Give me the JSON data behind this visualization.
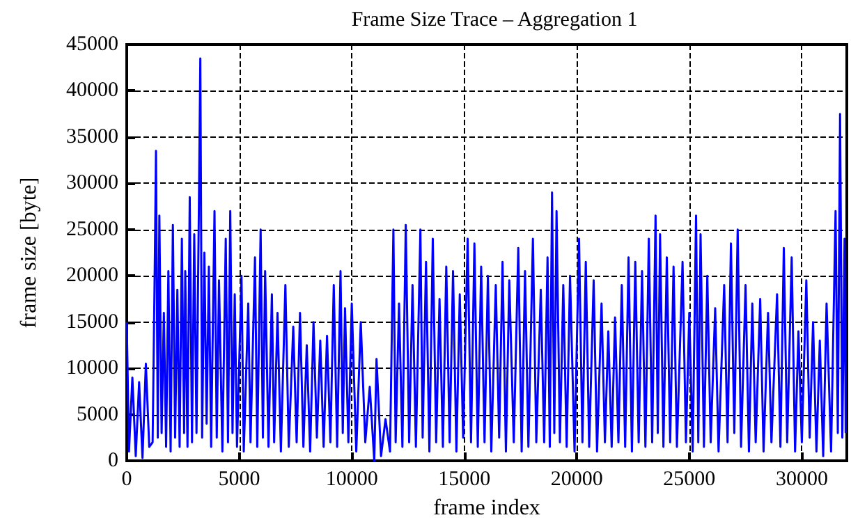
{
  "chart_data": {
    "type": "line",
    "title": "Frame Size Trace – Aggregation 1",
    "xlabel": "frame index",
    "ylabel": "frame size [byte]",
    "x": [
      0,
      100,
      250,
      400,
      550,
      700,
      850,
      1000,
      1150,
      1250,
      1300,
      1380,
      1450,
      1550,
      1650,
      1750,
      1850,
      1950,
      2050,
      2150,
      2250,
      2350,
      2450,
      2550,
      2600,
      2700,
      2800,
      2900,
      3000,
      3100,
      3200,
      3270,
      3350,
      3450,
      3550,
      3650,
      3750,
      3900,
      4000,
      4100,
      4250,
      4400,
      4500,
      4600,
      4700,
      4800,
      4900,
      5100,
      5200,
      5400,
      5500,
      5700,
      5800,
      5950,
      6050,
      6150,
      6300,
      6450,
      6550,
      6700,
      6850,
      7050,
      7200,
      7400,
      7550,
      7700,
      7850,
      8000,
      8150,
      8300,
      8450,
      8600,
      8750,
      8900,
      9050,
      9200,
      9350,
      9500,
      9600,
      9700,
      9850,
      10000,
      10200,
      10400,
      10600,
      10800,
      11000,
      11100,
      11300,
      11500,
      11700,
      11850,
      11950,
      12100,
      12250,
      12400,
      12550,
      12700,
      12850,
      13050,
      13150,
      13300,
      13450,
      13600,
      13750,
      13900,
      14050,
      14200,
      14350,
      14500,
      14650,
      14800,
      14950,
      15150,
      15300,
      15450,
      15600,
      15750,
      15900,
      16050,
      16200,
      16400,
      16550,
      16700,
      16850,
      17000,
      17200,
      17400,
      17550,
      17700,
      17850,
      18050,
      18200,
      18400,
      18550,
      18700,
      18800,
      18900,
      19000,
      19100,
      19250,
      19400,
      19550,
      19700,
      19900,
      20100,
      20250,
      20400,
      20550,
      20750,
      20900,
      21100,
      21250,
      21400,
      21550,
      21700,
      21850,
      22000,
      22150,
      22300,
      22450,
      22600,
      22750,
      22900,
      23050,
      23200,
      23350,
      23500,
      23600,
      23700,
      23850,
      24000,
      24150,
      24300,
      24450,
      24700,
      24850,
      25000,
      25150,
      25300,
      25400,
      25500,
      25650,
      25800,
      25950,
      26150,
      26300,
      26550,
      26700,
      26850,
      27000,
      27150,
      27300,
      27500,
      27650,
      27800,
      27950,
      28150,
      28300,
      28500,
      28650,
      28900,
      29050,
      29200,
      29350,
      29550,
      29700,
      29850,
      30000,
      30200,
      30350,
      30500,
      30650,
      30800,
      30950,
      31100,
      31300,
      31500,
      31600,
      31700,
      31800,
      31900,
      31950
    ],
    "series": [
      {
        "color": "#0000ff",
        "values": [
          15000,
          1000,
          9000,
          500,
          8500,
          300,
          10500,
          1500,
          2000,
          22000,
          33500,
          2500,
          26500,
          3000,
          16000,
          1500,
          20500,
          1000,
          25500,
          2500,
          18500,
          1500,
          24000,
          3000,
          20500,
          1500,
          28500,
          2000,
          24500,
          3000,
          26000,
          43500,
          2500,
          22500,
          4000,
          21000,
          1500,
          27000,
          2500,
          19500,
          1000,
          24000,
          2000,
          27000,
          3000,
          18000,
          1500,
          20000,
          1000,
          17000,
          2000,
          22000,
          1500,
          25000,
          2500,
          20500,
          1500,
          18000,
          2000,
          16000,
          1000,
          19000,
          1500,
          14500,
          2000,
          16000,
          1500,
          12500,
          1000,
          15000,
          2500,
          13000,
          1500,
          13500,
          2000,
          19000,
          1500,
          20500,
          3000,
          16500,
          2000,
          17000,
          1000,
          15000,
          2000,
          8000,
          0,
          11000,
          500,
          4500,
          1000,
          25000,
          2000,
          17000,
          1500,
          25500,
          2000,
          19000,
          1500,
          25000,
          2500,
          21500,
          1000,
          24000,
          2000,
          17500,
          1500,
          21000,
          2000,
          20500,
          1000,
          18000,
          2500,
          24000,
          2000,
          23500,
          1500,
          21000,
          2000,
          20000,
          1000,
          19000,
          2500,
          21500,
          1000,
          19500,
          2000,
          23000,
          1000,
          20500,
          1500,
          24000,
          2000,
          18500,
          2000,
          22000,
          1500,
          29000,
          3000,
          27000,
          2000,
          19000,
          1500,
          20000,
          1000,
          24000,
          2000,
          21500,
          1500,
          19500,
          1000,
          17000,
          2000,
          14000,
          1500,
          15500,
          2000,
          19000,
          1500,
          22000,
          1000,
          21500,
          2000,
          20500,
          1500,
          24000,
          2000,
          26500,
          3000,
          24500,
          1500,
          22000,
          2000,
          21000,
          1500,
          21500,
          2000,
          16000,
          1000,
          26500,
          2000,
          24500,
          1500,
          20000,
          2000,
          16500,
          1000,
          19000,
          2000,
          23500,
          3000,
          25000,
          1500,
          19000,
          1000,
          17000,
          2000,
          17500,
          1000,
          16000,
          2000,
          18000,
          1500,
          23000,
          2000,
          22000,
          1000,
          14000,
          2000,
          19500,
          2500,
          15000,
          1000,
          13000,
          500,
          17000,
          1000,
          27000,
          3000,
          37500,
          2500,
          24000,
          3000
        ]
      }
    ],
    "xlim": [
      0,
      32000
    ],
    "xticks": [
      0,
      5000,
      10000,
      15000,
      20000,
      25000,
      30000
    ],
    "ylim": [
      0,
      45000
    ],
    "yticks": [
      0,
      5000,
      10000,
      15000,
      20000,
      25000,
      30000,
      35000,
      40000,
      45000
    ],
    "grid": true,
    "marker": "none",
    "line_style": "solid"
  }
}
